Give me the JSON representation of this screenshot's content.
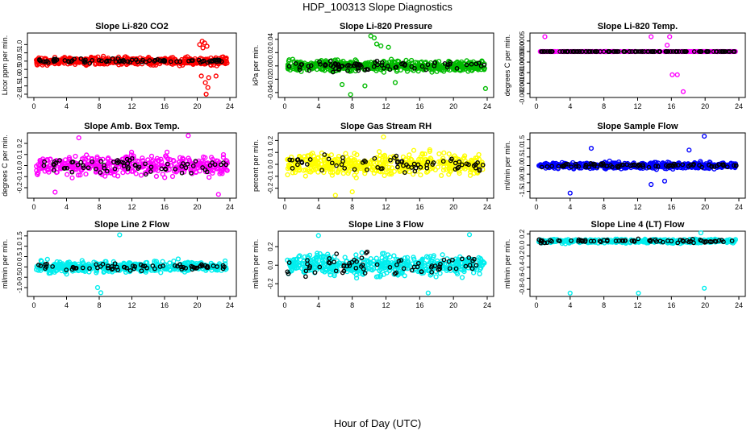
{
  "title": "HDP_100313  Slope Diagnostics",
  "xlabel": "Hour of Day (UTC)",
  "chart_data": [
    {
      "type": "scatter",
      "title": "Slope Li-820 CO2",
      "ylabel": "Licor ppm per min.",
      "xlim": [
        0,
        24
      ],
      "ylim": [
        -2.1,
        1.6
      ],
      "yticks": [
        "-2.0",
        "-1.5",
        "-1.0",
        "-0.5",
        "0.0",
        "0.5",
        "1.0"
      ],
      "ytick_values": [
        -2.0,
        -1.5,
        -1.0,
        -0.5,
        0.0,
        0.5,
        1.0
      ],
      "xticks": [
        0,
        4,
        8,
        12,
        16,
        20,
        24
      ],
      "color": "#ff0000",
      "center": 0.0,
      "spread": 0.22,
      "n": 500,
      "black_n": 80,
      "black_spread": 0.12,
      "outliers": [
        [
          20.6,
          1.2
        ],
        [
          20.9,
          1.1
        ],
        [
          21.2,
          0.9
        ],
        [
          20.5,
          -0.9
        ],
        [
          21.0,
          -1.3
        ],
        [
          21.3,
          -1.6
        ],
        [
          21.1,
          -2.0
        ],
        [
          20.7,
          0.8
        ],
        [
          21.4,
          -1.0
        ],
        [
          20.3,
          1.0
        ],
        [
          22.3,
          -0.9
        ]
      ]
    },
    {
      "type": "scatter",
      "title": "Slope Li-820 Pressure",
      "ylabel": "kPa per min.",
      "xlim": [
        0,
        24
      ],
      "ylim": [
        -0.045,
        0.047
      ],
      "yticks": [
        "-0.04",
        "-0.02",
        "0.00",
        "0.02",
        "0.04"
      ],
      "ytick_values": [
        -0.04,
        -0.02,
        0.0,
        0.02,
        0.04
      ],
      "xticks": [
        0,
        4,
        8,
        12,
        16,
        20,
        24
      ],
      "color": "#00bb00",
      "center": 0.0,
      "spread": 0.008,
      "n": 500,
      "black_n": 80,
      "black_spread": 0.007,
      "outliers": [
        [
          10.2,
          0.045
        ],
        [
          10.6,
          0.042
        ],
        [
          7.8,
          -0.043
        ],
        [
          23.8,
          -0.034
        ],
        [
          10.9,
          0.033
        ],
        [
          9.5,
          -0.03
        ],
        [
          11.4,
          0.03
        ],
        [
          12.3,
          0.028
        ],
        [
          6.8,
          -0.028
        ],
        [
          13.1,
          -0.025
        ]
      ]
    },
    {
      "type": "scatter",
      "title": "Slope Li-820 Temp.",
      "ylabel": "degrees C per min.",
      "xlim": [
        0,
        24
      ],
      "ylim": [
        -0.0021,
        0.0008
      ],
      "yticks": [
        "-0.0020",
        "-0.0015",
        "-0.0010",
        "-0.0005",
        "0.0000",
        "0.0005"
      ],
      "ytick_values": [
        -0.002,
        -0.0015,
        -0.001,
        -0.0005,
        0.0,
        0.0005
      ],
      "xticks": [
        0,
        4,
        8,
        12,
        16,
        20,
        24
      ],
      "color": "#ff00ff",
      "center": 0.0,
      "spread": 0.0,
      "n": 240,
      "black_n": 120,
      "black_spread": 0.0,
      "outliers": [
        [
          1.0,
          0.0007
        ],
        [
          13.6,
          0.0007
        ],
        [
          15.5,
          0.0003
        ],
        [
          16.1,
          -0.0011
        ],
        [
          16.7,
          -0.0011
        ],
        [
          17.4,
          -0.0019
        ],
        [
          15.8,
          0.0007
        ]
      ]
    },
    {
      "type": "scatter",
      "title": "Slope Amb. Box Temp.",
      "ylabel": "degrees C per min.",
      "xlim": [
        0,
        24
      ],
      "ylim": [
        -0.28,
        0.28
      ],
      "yticks": [
        "-0.2",
        "-0.1",
        "0.0",
        "0.1",
        "0.2"
      ],
      "ytick_values": [
        -0.2,
        -0.1,
        0.0,
        0.1,
        0.2
      ],
      "xticks": [
        0,
        4,
        8,
        12,
        16,
        20,
        24
      ],
      "color": "#ff00ff",
      "center": 0.0,
      "spread": 0.085,
      "n": 420,
      "black_n": 70,
      "black_spread": 0.07,
      "outliers": [
        [
          22.6,
          -0.26
        ],
        [
          2.6,
          -0.24
        ],
        [
          18.9,
          0.27
        ],
        [
          5.5,
          0.25
        ]
      ]
    },
    {
      "type": "scatter",
      "title": "Slope Gas Stream RH",
      "ylabel": "percent per min.",
      "xlim": [
        0,
        24
      ],
      "ylim": [
        -0.27,
        0.25
      ],
      "yticks": [
        "-0.2",
        "-0.1",
        "0.0",
        "0.1",
        "0.2"
      ],
      "ytick_values": [
        -0.2,
        -0.1,
        0.0,
        0.1,
        0.2
      ],
      "xticks": [
        0,
        4,
        8,
        12,
        16,
        20,
        24
      ],
      "color": "#ffff00",
      "center": 0.0,
      "spread": 0.085,
      "n": 480,
      "black_n": 70,
      "black_spread": 0.065,
      "outliers": [
        [
          6.0,
          -0.26
        ],
        [
          8.0,
          -0.23
        ],
        [
          11.7,
          0.23
        ]
      ]
    },
    {
      "type": "scatter",
      "title": "Slope Sample Flow",
      "ylabel": "ml/min per min.",
      "xlim": [
        0,
        24
      ],
      "ylim": [
        -1.8,
        1.8
      ],
      "yticks": [
        "-1.5",
        "-1.0",
        "-0.5",
        "0.0",
        "0.5",
        "1.0",
        "1.5"
      ],
      "ytick_values": [
        -1.5,
        -1.0,
        -0.5,
        0.0,
        0.5,
        1.0,
        1.5
      ],
      "xticks": [
        0,
        4,
        8,
        12,
        16,
        20,
        24
      ],
      "color": "#0000ff",
      "center": 0.0,
      "spread": 0.17,
      "n": 500,
      "black_n": 80,
      "black_spread": 0.1,
      "outliers": [
        [
          4.0,
          -1.6
        ],
        [
          19.9,
          1.7
        ],
        [
          13.6,
          -1.1
        ],
        [
          6.5,
          1.0
        ],
        [
          15.2,
          -0.9
        ],
        [
          18.1,
          0.9
        ]
      ]
    },
    {
      "type": "scatter",
      "title": "Slope Line 2 Flow",
      "ylabel": "ml/min per min.",
      "xlim": [
        0,
        24
      ],
      "ylim": [
        -1.35,
        1.65
      ],
      "yticks": [
        "-1.0",
        "-0.5",
        "0.0",
        "0.5",
        "1.0",
        "1.5"
      ],
      "ytick_values": [
        -1.0,
        -0.5,
        0.0,
        0.5,
        1.0,
        1.5
      ],
      "xticks": [
        0,
        4,
        8,
        12,
        16,
        20,
        24
      ],
      "color": "#00eeee",
      "center": 0.0,
      "spread": 0.25,
      "n": 480,
      "black_n": 70,
      "black_spread": 0.15,
      "outliers": [
        [
          10.5,
          1.55
        ],
        [
          7.8,
          -1.0
        ],
        [
          8.2,
          -1.25
        ]
      ]
    },
    {
      "type": "scatter",
      "title": "Slope Line 3 Flow",
      "ylabel": "ml/min per min.",
      "xlim": [
        0,
        24
      ],
      "ylim": [
        -0.32,
        0.35
      ],
      "yticks": [
        "-0.2",
        "0.0",
        "0.2"
      ],
      "ytick_values": [
        -0.2,
        0.0,
        0.2
      ],
      "xticks": [
        0,
        4,
        8,
        12,
        16,
        20,
        24
      ],
      "color": "#00eeee",
      "center": 0.0,
      "spread": 0.11,
      "n": 500,
      "black_n": 70,
      "black_spread": 0.1,
      "outliers": [
        [
          4.0,
          0.32
        ],
        [
          21.9,
          0.33
        ],
        [
          17.0,
          -0.3
        ]
      ]
    },
    {
      "type": "scatter",
      "title": "Slope Line 4 (LT) Flow",
      "ylabel": "ml/min per min.",
      "xlim": [
        0,
        24
      ],
      "ylim": [
        -0.9,
        0.22
      ],
      "yticks": [
        "-0.8",
        "-0.6",
        "-0.4",
        "-0.2",
        "0.0",
        "0.2"
      ],
      "ytick_values": [
        -0.8,
        -0.6,
        -0.4,
        -0.2,
        0.0,
        0.2
      ],
      "xticks": [
        0,
        4,
        8,
        12,
        16,
        20,
        24
      ],
      "color": "#00eeee",
      "center": 0.07,
      "spread": 0.035,
      "n": 380,
      "black_n": 70,
      "black_spread": 0.03,
      "outliers": [
        [
          4.0,
          -0.87
        ],
        [
          12.1,
          -0.87
        ],
        [
          19.9,
          -0.78
        ],
        [
          19.5,
          0.22
        ]
      ]
    }
  ]
}
